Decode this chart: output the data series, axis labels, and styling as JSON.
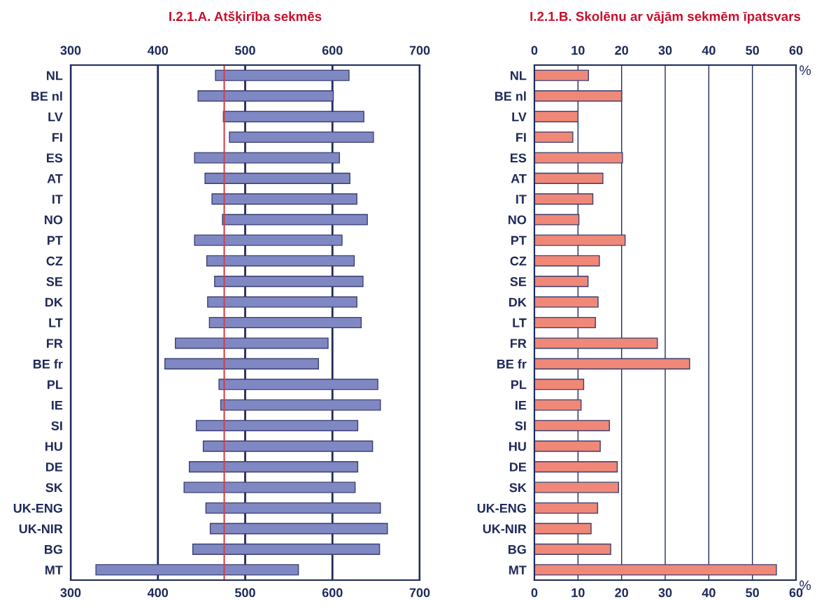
{
  "chart_data": [
    {
      "type": "bar",
      "orientation": "horizontal",
      "title": "I.2.1.A. Atšķirība sekmēs",
      "categories": [
        "NL",
        "BE nl",
        "LV",
        "FI",
        "ES",
        "AT",
        "IT",
        "NO",
        "PT",
        "CZ",
        "SE",
        "DK",
        "LT",
        "FR",
        "BE fr",
        "PL",
        "IE",
        "SI",
        "HU",
        "DE",
        "SK",
        "UK-ENG",
        "UK-NIR",
        "BG",
        "MT"
      ],
      "series": [
        {
          "color": "#8088c4",
          "base": [
            466,
            446,
            475,
            482,
            442,
            454,
            462,
            474,
            442,
            456,
            465,
            457,
            459,
            420,
            408,
            470,
            472,
            444,
            452,
            436,
            430,
            455,
            460,
            440,
            329
          ],
          "values": [
            153,
            155,
            161,
            165,
            166,
            166,
            166,
            166,
            169,
            169,
            170,
            171,
            174,
            175,
            176,
            182,
            183,
            185,
            194,
            193,
            196,
            200,
            203,
            214,
            232
          ]
        }
      ],
      "xlim": [
        300,
        700
      ],
      "xticks": [
        300,
        400,
        500,
        600,
        700
      ],
      "x2lim": [
        300,
        700
      ],
      "x2ticks": [
        300,
        400,
        500,
        600,
        700
      ],
      "grid": "x",
      "ref_lines": [
        {
          "axis": "x",
          "value": 476,
          "color": "#d0404a"
        }
      ]
    },
    {
      "type": "bar",
      "orientation": "horizontal",
      "title": "I.2.1.B. Skolēnu ar vājām sekmēm īpatsvars",
      "categories": [
        "NL",
        "BE nl",
        "LV",
        "FI",
        "ES",
        "AT",
        "IT",
        "NO",
        "PT",
        "CZ",
        "SE",
        "DK",
        "LT",
        "FR",
        "BE fr",
        "PL",
        "IE",
        "SI",
        "HU",
        "DE",
        "SK",
        "UK-ENG",
        "UK-NIR",
        "BG",
        "MT"
      ],
      "series": [
        {
          "color": "#f08878",
          "values": [
            12.4,
            20.0,
            10.0,
            8.8,
            20.2,
            15.7,
            13.4,
            10.2,
            20.8,
            14.9,
            12.3,
            14.6,
            14.0,
            28.2,
            35.6,
            11.3,
            10.7,
            17.2,
            15.1,
            19.0,
            19.3,
            14.5,
            13.0,
            17.5,
            55.5
          ]
        }
      ],
      "xlim": [
        0,
        60
      ],
      "xticks": [
        0,
        10,
        20,
        30,
        40,
        50,
        60
      ],
      "x2lim": [
        0,
        60
      ],
      "x2ticks": [
        0,
        10,
        20,
        30,
        40,
        50,
        60
      ],
      "xlabel": "%",
      "x2label": "%",
      "grid": "x"
    }
  ]
}
